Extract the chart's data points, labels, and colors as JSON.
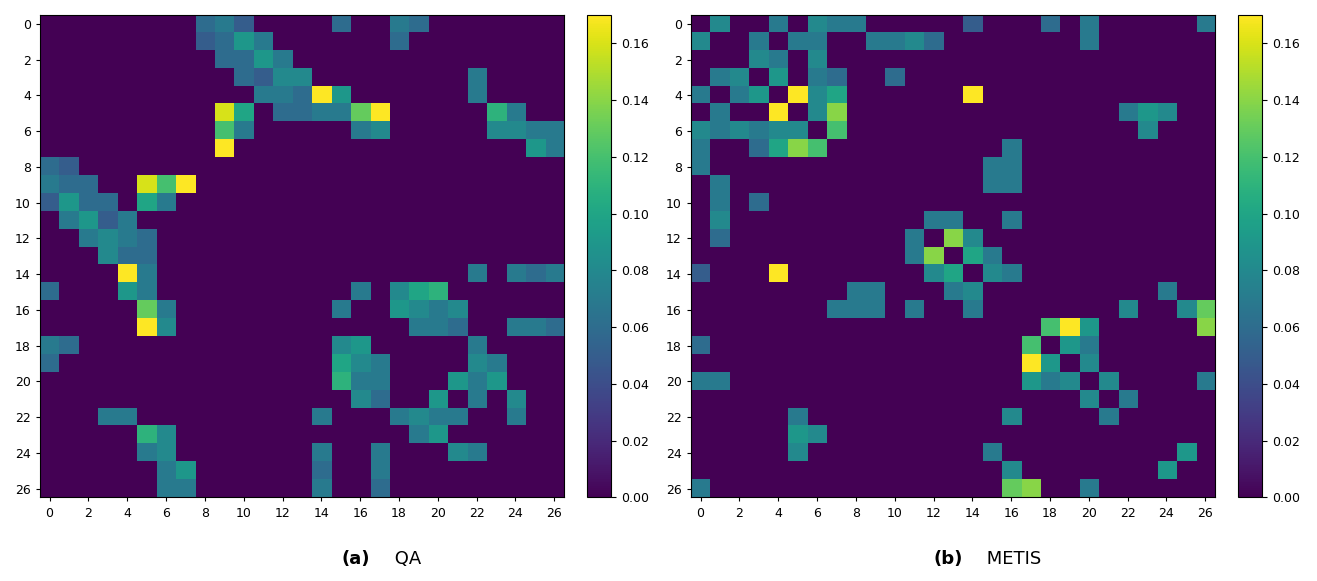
{
  "colormap": "viridis",
  "vmin": 0.0,
  "vmax": 0.17,
  "n": 27,
  "tick_step": 2,
  "figsize": [
    13.17,
    5.81
  ],
  "dpi": 100,
  "label_a_bold": "(a)",
  "label_a_normal": " QA",
  "label_b_bold": "(b)",
  "label_b_normal": " METIS",
  "label_fontsize": 13
}
